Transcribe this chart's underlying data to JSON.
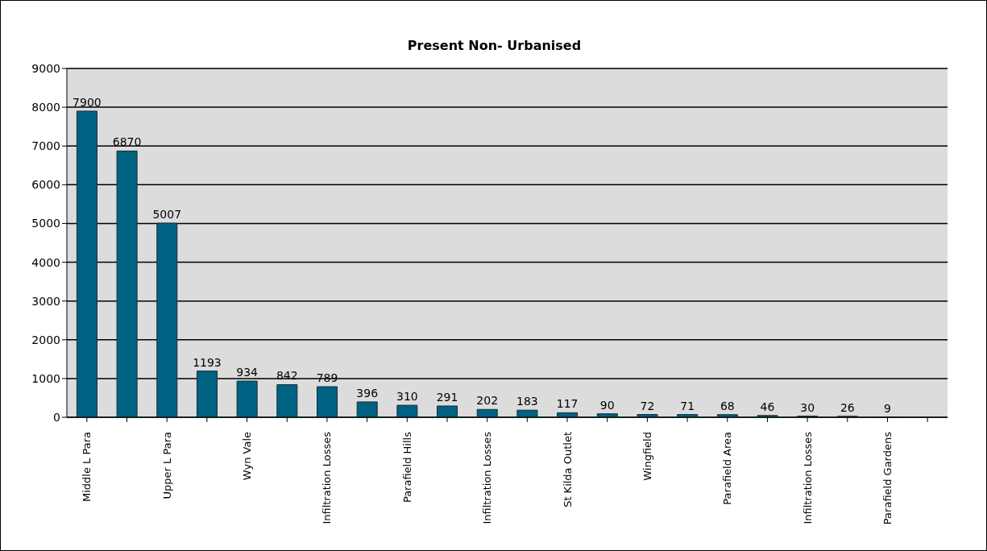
{
  "chart_data": {
    "type": "bar",
    "title": "Present Non- Urbanised",
    "categories": [
      "Middle L Para",
      null,
      "Upper L Para",
      null,
      "Wyn Vale",
      null,
      "Infiltration Losses",
      null,
      "Parafield Hills",
      null,
      "Infiltration Losses",
      null,
      "St Kilda Outlet",
      null,
      "Wingfield",
      null,
      "Parafield Area",
      null,
      "Infiltration Losses",
      null,
      "Parafield Gardens",
      null
    ],
    "values": [
      7900,
      6870,
      5007,
      1193,
      934,
      842,
      789,
      396,
      310,
      291,
      202,
      183,
      117,
      90,
      72,
      71,
      68,
      46,
      30,
      26,
      9,
      null
    ],
    "color": "#006282",
    "ylim": [
      0,
      9000
    ],
    "yticks": [
      0,
      1000,
      2000,
      3000,
      4000,
      5000,
      6000,
      7000,
      8000,
      9000
    ],
    "grid": "y",
    "data_labels": true
  }
}
